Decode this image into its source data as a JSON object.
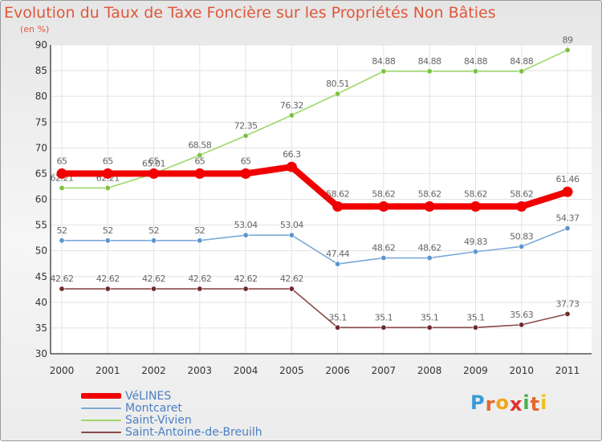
{
  "header": {
    "title": "Evolution du Taux de Taxe Foncière sur les Propriétés Non Bâties",
    "unit": "(en %)"
  },
  "logo": {
    "letters": [
      "P",
      "r",
      "o",
      "x",
      "i",
      "t",
      "i"
    ],
    "colors": [
      "#3a9ad9",
      "#e8642c",
      "#f2a51a",
      "#e0312e",
      "#4cae4c",
      "#e8642c",
      "#f2c21a"
    ]
  },
  "chart_data": {
    "type": "line",
    "x": [
      "2000",
      "2001",
      "2002",
      "2003",
      "2004",
      "2005",
      "2006",
      "2007",
      "2008",
      "2009",
      "2010",
      "2011"
    ],
    "ylim": [
      30,
      90
    ],
    "yticks": [
      30,
      35,
      40,
      45,
      50,
      55,
      60,
      65,
      70,
      75,
      80,
      85,
      90
    ],
    "grid": true,
    "legend_position": "bottom-left",
    "series": [
      {
        "name": "Saint-Vivien",
        "color": "#9ed86a",
        "point_color": "#7cc242",
        "values": [
          62.21,
          62.21,
          65.01,
          68.58,
          72.35,
          76.32,
          80.51,
          84.88,
          84.88,
          84.88,
          84.88,
          89
        ],
        "labels": [
          "62.21",
          "62.21",
          "65.01",
          "68.58",
          "72.35",
          "76.32",
          "80.51",
          "84.88",
          "84.88",
          "84.88",
          "84.88",
          "89"
        ]
      },
      {
        "name": "Montcaret",
        "color": "#7aa9d6",
        "point_color": "#5b95cf",
        "values": [
          52,
          52,
          52,
          52,
          53.04,
          53.04,
          47.44,
          48.62,
          48.62,
          49.83,
          50.83,
          54.37
        ],
        "labels": [
          "52",
          "52",
          "52",
          "52",
          "53.04",
          "53.04",
          "47.44",
          "48.62",
          "48.62",
          "49.83",
          "50.83",
          "54.37"
        ]
      },
      {
        "name": "Saint-Antoine-de-Breuilh",
        "color": "#8a4a4a",
        "point_color": "#6e2d2d",
        "values": [
          42.62,
          42.62,
          42.62,
          42.62,
          42.62,
          42.62,
          35.1,
          35.1,
          35.1,
          35.1,
          35.63,
          37.73
        ],
        "labels": [
          "42.62",
          "42.62",
          "42.62",
          "42.62",
          "42.62",
          "42.62",
          "35.1",
          "35.1",
          "35.1",
          "35.1",
          "35.63",
          "37.73"
        ]
      },
      {
        "name": "VéLINES",
        "color": "#f00000",
        "point_color": "#f00000",
        "values": [
          65,
          65,
          65,
          65,
          65,
          66.3,
          58.62,
          58.62,
          58.62,
          58.62,
          58.62,
          61.46
        ],
        "labels": [
          "65",
          "65",
          "65",
          "65",
          "65",
          "66.3",
          "58.62",
          "58.62",
          "58.62",
          "58.62",
          "58.62",
          "61.46"
        ]
      }
    ],
    "legend_order": [
      "VéLINES",
      "Montcaret",
      "Saint-Vivien",
      "Saint-Antoine-de-Breuilh"
    ]
  }
}
